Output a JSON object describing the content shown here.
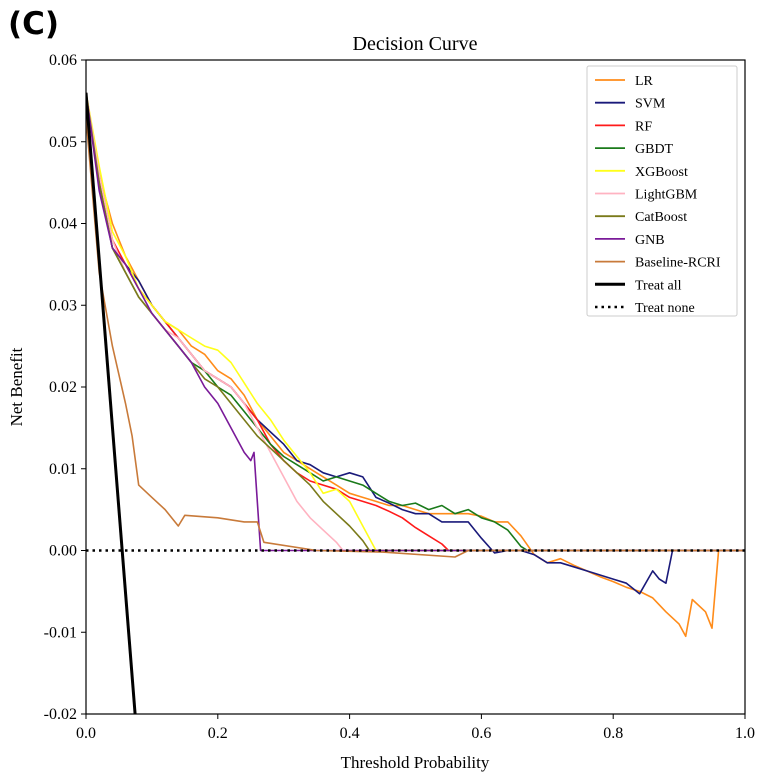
{
  "panel_label": "(C)",
  "chart_data": {
    "type": "line",
    "title": "Decision Curve",
    "xlabel": "Threshold Probability",
    "ylabel": "Net Benefit",
    "xlim": [
      0.0,
      1.0
    ],
    "ylim": [
      -0.02,
      0.06
    ],
    "xticks": [
      0.0,
      0.2,
      0.4,
      0.6,
      0.8,
      1.0
    ],
    "xtick_labels": [
      "0.0",
      "0.2",
      "0.4",
      "0.6",
      "0.8",
      "1.0"
    ],
    "yticks": [
      -0.02,
      -0.01,
      0.0,
      0.01,
      0.02,
      0.03,
      0.04,
      0.05,
      0.06
    ],
    "ytick_labels": [
      "-0.02",
      "-0.01",
      "0.00",
      "0.01",
      "0.02",
      "0.03",
      "0.04",
      "0.05",
      "0.06"
    ],
    "grid": false,
    "legend_position": "top-right",
    "series": [
      {
        "name": "LR",
        "color": "#ff8c1a",
        "style": "solid",
        "points": [
          [
            0,
            0.056
          ],
          [
            0.02,
            0.046
          ],
          [
            0.04,
            0.04
          ],
          [
            0.06,
            0.036
          ],
          [
            0.08,
            0.033
          ],
          [
            0.1,
            0.03
          ],
          [
            0.12,
            0.028
          ],
          [
            0.14,
            0.027
          ],
          [
            0.16,
            0.025
          ],
          [
            0.18,
            0.024
          ],
          [
            0.2,
            0.022
          ],
          [
            0.22,
            0.021
          ],
          [
            0.24,
            0.019
          ],
          [
            0.26,
            0.016
          ],
          [
            0.28,
            0.014
          ],
          [
            0.3,
            0.012
          ],
          [
            0.32,
            0.011
          ],
          [
            0.34,
            0.01
          ],
          [
            0.36,
            0.009
          ],
          [
            0.38,
            0.008
          ],
          [
            0.4,
            0.007
          ],
          [
            0.42,
            0.0065
          ],
          [
            0.44,
            0.006
          ],
          [
            0.46,
            0.0055
          ],
          [
            0.48,
            0.0055
          ],
          [
            0.5,
            0.005
          ],
          [
            0.52,
            0.0045
          ],
          [
            0.54,
            0.0045
          ],
          [
            0.56,
            0.0045
          ],
          [
            0.58,
            0.0045
          ],
          [
            0.6,
            0.0042
          ],
          [
            0.62,
            0.0035
          ],
          [
            0.64,
            0.0035
          ],
          [
            0.66,
            0.0018
          ],
          [
            0.68,
            -0.0005
          ],
          [
            0.7,
            -0.0015
          ],
          [
            0.72,
            -0.001
          ],
          [
            0.74,
            -0.0018
          ],
          [
            0.76,
            -0.0025
          ],
          [
            0.78,
            -0.0032
          ],
          [
            0.8,
            -0.0038
          ],
          [
            0.82,
            -0.0045
          ],
          [
            0.84,
            -0.005
          ],
          [
            0.86,
            -0.0058
          ],
          [
            0.88,
            -0.0075
          ],
          [
            0.9,
            -0.009
          ],
          [
            0.91,
            -0.0105
          ],
          [
            0.92,
            -0.006
          ],
          [
            0.94,
            -0.0075
          ],
          [
            0.95,
            -0.0095
          ],
          [
            0.96,
            0.0
          ],
          [
            1.0,
            0.0
          ]
        ]
      },
      {
        "name": "SVM",
        "color": "#1a1a7a",
        "style": "solid",
        "points": [
          [
            0,
            0.056
          ],
          [
            0.02,
            0.045
          ],
          [
            0.04,
            0.037
          ],
          [
            0.06,
            0.035
          ],
          [
            0.08,
            0.033
          ],
          [
            0.1,
            0.03
          ],
          [
            0.12,
            0.028
          ],
          [
            0.14,
            0.026
          ],
          [
            0.16,
            0.024
          ],
          [
            0.18,
            0.022
          ],
          [
            0.2,
            0.021
          ],
          [
            0.22,
            0.02
          ],
          [
            0.24,
            0.018
          ],
          [
            0.26,
            0.016
          ],
          [
            0.28,
            0.0145
          ],
          [
            0.3,
            0.013
          ],
          [
            0.32,
            0.011
          ],
          [
            0.34,
            0.0105
          ],
          [
            0.36,
            0.0095
          ],
          [
            0.38,
            0.009
          ],
          [
            0.4,
            0.0095
          ],
          [
            0.42,
            0.009
          ],
          [
            0.44,
            0.0065
          ],
          [
            0.46,
            0.0058
          ],
          [
            0.48,
            0.005
          ],
          [
            0.5,
            0.0045
          ],
          [
            0.52,
            0.0045
          ],
          [
            0.54,
            0.0035
          ],
          [
            0.56,
            0.0035
          ],
          [
            0.58,
            0.0035
          ],
          [
            0.6,
            0.0015
          ],
          [
            0.62,
            -0.0003
          ],
          [
            0.64,
            0.0
          ],
          [
            0.66,
            0.0
          ],
          [
            0.68,
            -0.0005
          ],
          [
            0.7,
            -0.0015
          ],
          [
            0.72,
            -0.0015
          ],
          [
            0.74,
            -0.002
          ],
          [
            0.76,
            -0.0025
          ],
          [
            0.78,
            -0.003
          ],
          [
            0.8,
            -0.0035
          ],
          [
            0.82,
            -0.004
          ],
          [
            0.84,
            -0.0053
          ],
          [
            0.86,
            -0.0025
          ],
          [
            0.87,
            -0.0035
          ],
          [
            0.88,
            -0.004
          ],
          [
            0.89,
            0.0
          ],
          [
            1.0,
            0.0
          ]
        ]
      },
      {
        "name": "RF",
        "color": "#ff1a1a",
        "style": "solid",
        "points": [
          [
            0,
            0.056
          ],
          [
            0.02,
            0.046
          ],
          [
            0.04,
            0.038
          ],
          [
            0.06,
            0.035
          ],
          [
            0.08,
            0.032
          ],
          [
            0.1,
            0.03
          ],
          [
            0.12,
            0.028
          ],
          [
            0.14,
            0.026
          ],
          [
            0.16,
            0.024
          ],
          [
            0.18,
            0.022
          ],
          [
            0.2,
            0.021
          ],
          [
            0.22,
            0.02
          ],
          [
            0.24,
            0.018
          ],
          [
            0.26,
            0.016
          ],
          [
            0.28,
            0.013
          ],
          [
            0.3,
            0.011
          ],
          [
            0.32,
            0.0095
          ],
          [
            0.34,
            0.0085
          ],
          [
            0.36,
            0.008
          ],
          [
            0.38,
            0.0075
          ],
          [
            0.4,
            0.0065
          ],
          [
            0.42,
            0.006
          ],
          [
            0.44,
            0.0055
          ],
          [
            0.46,
            0.0048
          ],
          [
            0.48,
            0.004
          ],
          [
            0.5,
            0.0028
          ],
          [
            0.52,
            0.0018
          ],
          [
            0.54,
            0.0008
          ],
          [
            0.55,
            0.0
          ],
          [
            1.0,
            0.0
          ]
        ]
      },
      {
        "name": "GBDT",
        "color": "#1a7a1a",
        "style": "solid",
        "points": [
          [
            0,
            0.056
          ],
          [
            0.02,
            0.045
          ],
          [
            0.04,
            0.037
          ],
          [
            0.06,
            0.034
          ],
          [
            0.08,
            0.031
          ],
          [
            0.1,
            0.029
          ],
          [
            0.12,
            0.027
          ],
          [
            0.14,
            0.025
          ],
          [
            0.16,
            0.023
          ],
          [
            0.18,
            0.022
          ],
          [
            0.2,
            0.02
          ],
          [
            0.22,
            0.019
          ],
          [
            0.24,
            0.017
          ],
          [
            0.26,
            0.015
          ],
          [
            0.28,
            0.013
          ],
          [
            0.3,
            0.0115
          ],
          [
            0.32,
            0.0105
          ],
          [
            0.34,
            0.0095
          ],
          [
            0.36,
            0.0085
          ],
          [
            0.38,
            0.009
          ],
          [
            0.4,
            0.0085
          ],
          [
            0.42,
            0.008
          ],
          [
            0.44,
            0.007
          ],
          [
            0.46,
            0.006
          ],
          [
            0.48,
            0.0055
          ],
          [
            0.5,
            0.0058
          ],
          [
            0.52,
            0.005
          ],
          [
            0.54,
            0.0055
          ],
          [
            0.56,
            0.0045
          ],
          [
            0.58,
            0.005
          ],
          [
            0.6,
            0.004
          ],
          [
            0.62,
            0.0035
          ],
          [
            0.64,
            0.0025
          ],
          [
            0.66,
            0.0005
          ],
          [
            0.67,
            0.0
          ],
          [
            1.0,
            0.0
          ]
        ]
      },
      {
        "name": "XGBoost",
        "color": "#ffff1a",
        "style": "solid",
        "points": [
          [
            0,
            0.056
          ],
          [
            0.02,
            0.047
          ],
          [
            0.04,
            0.039
          ],
          [
            0.06,
            0.036
          ],
          [
            0.08,
            0.032
          ],
          [
            0.1,
            0.03
          ],
          [
            0.12,
            0.028
          ],
          [
            0.14,
            0.027
          ],
          [
            0.16,
            0.026
          ],
          [
            0.18,
            0.025
          ],
          [
            0.2,
            0.0245
          ],
          [
            0.22,
            0.023
          ],
          [
            0.24,
            0.0205
          ],
          [
            0.26,
            0.018
          ],
          [
            0.28,
            0.016
          ],
          [
            0.3,
            0.0135
          ],
          [
            0.32,
            0.0115
          ],
          [
            0.34,
            0.0095
          ],
          [
            0.36,
            0.007
          ],
          [
            0.38,
            0.0075
          ],
          [
            0.4,
            0.006
          ],
          [
            0.42,
            0.003
          ],
          [
            0.44,
            0.0
          ],
          [
            1.0,
            0.0
          ]
        ]
      },
      {
        "name": "LightGBM",
        "color": "#ffb3c1",
        "style": "solid",
        "points": [
          [
            0,
            0.056
          ],
          [
            0.02,
            0.046
          ],
          [
            0.04,
            0.038
          ],
          [
            0.06,
            0.034
          ],
          [
            0.08,
            0.031
          ],
          [
            0.1,
            0.029
          ],
          [
            0.12,
            0.027
          ],
          [
            0.14,
            0.026
          ],
          [
            0.16,
            0.024
          ],
          [
            0.18,
            0.022
          ],
          [
            0.2,
            0.021
          ],
          [
            0.22,
            0.02
          ],
          [
            0.24,
            0.018
          ],
          [
            0.26,
            0.015
          ],
          [
            0.28,
            0.012
          ],
          [
            0.3,
            0.009
          ],
          [
            0.32,
            0.006
          ],
          [
            0.34,
            0.004
          ],
          [
            0.36,
            0.0025
          ],
          [
            0.38,
            0.001
          ],
          [
            0.39,
            0.0
          ],
          [
            1.0,
            0.0
          ]
        ]
      },
      {
        "name": "CatBoost",
        "color": "#7a7a1a",
        "style": "solid",
        "points": [
          [
            0,
            0.056
          ],
          [
            0.02,
            0.045
          ],
          [
            0.04,
            0.037
          ],
          [
            0.06,
            0.034
          ],
          [
            0.08,
            0.031
          ],
          [
            0.1,
            0.029
          ],
          [
            0.12,
            0.027
          ],
          [
            0.14,
            0.025
          ],
          [
            0.16,
            0.023
          ],
          [
            0.18,
            0.021
          ],
          [
            0.2,
            0.02
          ],
          [
            0.22,
            0.018
          ],
          [
            0.24,
            0.016
          ],
          [
            0.26,
            0.014
          ],
          [
            0.28,
            0.0125
          ],
          [
            0.3,
            0.011
          ],
          [
            0.32,
            0.0095
          ],
          [
            0.34,
            0.008
          ],
          [
            0.36,
            0.006
          ],
          [
            0.38,
            0.0045
          ],
          [
            0.4,
            0.003
          ],
          [
            0.42,
            0.0012
          ],
          [
            0.43,
            0.0
          ],
          [
            1.0,
            0.0
          ]
        ]
      },
      {
        "name": "GNB",
        "color": "#7a1a99",
        "style": "solid",
        "points": [
          [
            0,
            0.056
          ],
          [
            0.02,
            0.044
          ],
          [
            0.04,
            0.037
          ],
          [
            0.06,
            0.035
          ],
          [
            0.08,
            0.032
          ],
          [
            0.1,
            0.029
          ],
          [
            0.12,
            0.027
          ],
          [
            0.14,
            0.025
          ],
          [
            0.16,
            0.023
          ],
          [
            0.18,
            0.02
          ],
          [
            0.2,
            0.018
          ],
          [
            0.22,
            0.015
          ],
          [
            0.24,
            0.012
          ],
          [
            0.25,
            0.011
          ],
          [
            0.255,
            0.012
          ],
          [
            0.265,
            0.0
          ],
          [
            1.0,
            0.0
          ]
        ]
      },
      {
        "name": "Baseline-RCRI",
        "color": "#c87a3a",
        "style": "solid",
        "points": [
          [
            0,
            0.053
          ],
          [
            0.02,
            0.034
          ],
          [
            0.04,
            0.025
          ],
          [
            0.06,
            0.018
          ],
          [
            0.07,
            0.014
          ],
          [
            0.08,
            0.008
          ],
          [
            0.1,
            0.0065
          ],
          [
            0.12,
            0.005
          ],
          [
            0.14,
            0.003
          ],
          [
            0.15,
            0.0043
          ],
          [
            0.2,
            0.004
          ],
          [
            0.24,
            0.0035
          ],
          [
            0.26,
            0.0035
          ],
          [
            0.27,
            0.001
          ],
          [
            0.35,
            0.0
          ],
          [
            0.45,
            -0.0002
          ],
          [
            0.56,
            -0.0008
          ],
          [
            0.58,
            0.0
          ],
          [
            1.0,
            0.0
          ]
        ]
      },
      {
        "name": "Treat all",
        "color": "#000000",
        "style": "solid",
        "points": [
          [
            0,
            0.056
          ],
          [
            0.0745,
            -0.02
          ]
        ]
      },
      {
        "name": "Treat none",
        "color": "#000000",
        "style": "dotted",
        "points": [
          [
            0,
            0.0
          ],
          [
            1.0,
            0.0
          ]
        ]
      }
    ]
  }
}
